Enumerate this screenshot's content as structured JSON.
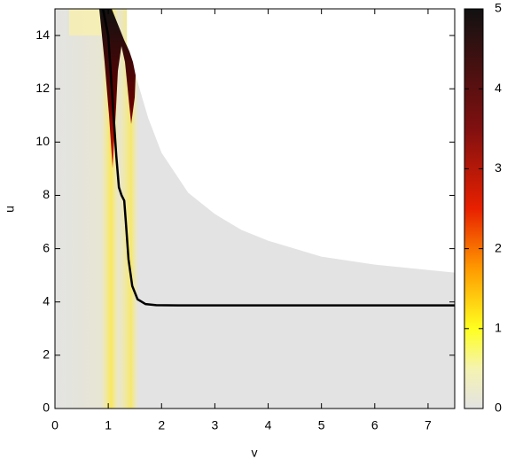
{
  "chart_data": {
    "type": "line",
    "xlabel": "v",
    "ylabel": "u",
    "xlim": [
      0,
      7.5
    ],
    "xticks": [
      0,
      1,
      2,
      3,
      4,
      5,
      6,
      7
    ],
    "ylim": [
      0,
      15
    ],
    "yticks": [
      0,
      2,
      4,
      6,
      8,
      10,
      12,
      14
    ],
    "series": [
      {
        "color": "#000000",
        "x": [
          0.9,
          1.0,
          1.05,
          1.1,
          1.15,
          1.2,
          1.25,
          1.3,
          1.33,
          1.38,
          1.45,
          1.55,
          1.7,
          1.9,
          2.3,
          7.5
        ],
        "values": [
          15,
          14,
          12.5,
          11,
          9.5,
          8.3,
          8.0,
          7.8,
          7.0,
          5.6,
          4.6,
          4.1,
          3.92,
          3.88,
          3.87,
          3.87
        ]
      }
    ],
    "domain_edge": {
      "x": [
        1.35,
        1.5,
        1.75,
        2,
        2.5,
        3,
        3.5,
        4,
        5,
        6,
        7.5
      ],
      "values": [
        13.7,
        12.6,
        10.9,
        9.6,
        8.1,
        7.3,
        6.7,
        6.3,
        5.7,
        5.4,
        5.1
      ]
    },
    "colorbar": {
      "lim": [
        0,
        5
      ],
      "ticks": [
        0,
        1,
        2,
        3,
        4,
        5
      ]
    }
  }
}
